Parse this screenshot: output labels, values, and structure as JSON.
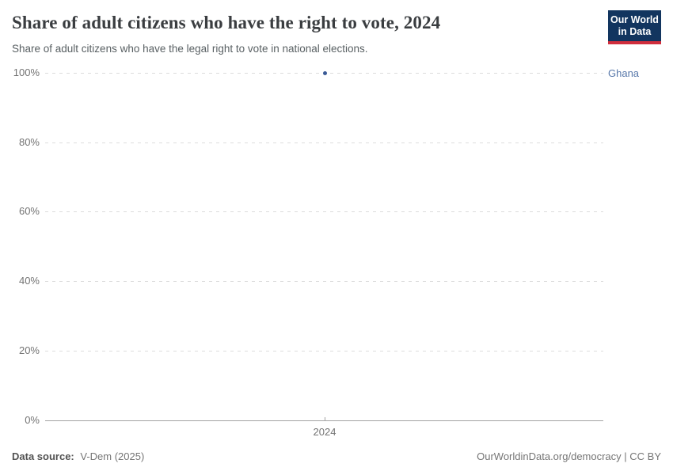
{
  "header": {
    "title": "Share of adult citizens who have the right to vote, 2024",
    "subtitle": "Share of adult citizens who have the legal right to vote in national elections.",
    "logo": {
      "line1": "Our World",
      "line2": "in Data"
    }
  },
  "chart_data": {
    "type": "scatter",
    "title": "Share of adult citizens who have the right to vote, 2024",
    "x": [
      2024
    ],
    "series": [
      {
        "name": "Ghana",
        "values": [
          100
        ],
        "color": "#4C6A9C"
      }
    ],
    "ylim": [
      0,
      100
    ],
    "yticks_top_to_bottom": [
      "100%",
      "80%",
      "60%",
      "40%",
      "20%",
      "0%"
    ],
    "xticks": [
      "2024"
    ],
    "grid": "horizontal-dashed",
    "legend_position": "right-of-point"
  },
  "footer": {
    "source_label": "Data source:",
    "source_value": "V-Dem (2025)",
    "rights": "OurWorldinData.org/democracy | CC BY"
  },
  "colors": {
    "series_blue": "#4C6A9C",
    "point_dot": "#3a5a96",
    "entity_label_text": "#5878aa",
    "logo_navy": "#12355f",
    "logo_red": "#d02e3d",
    "gridline": "#dcdcdc",
    "axis_line": "#a3a3a3",
    "tick_text": "#737373",
    "title_text": "#3a3d40",
    "subtitle_text": "#596063"
  }
}
